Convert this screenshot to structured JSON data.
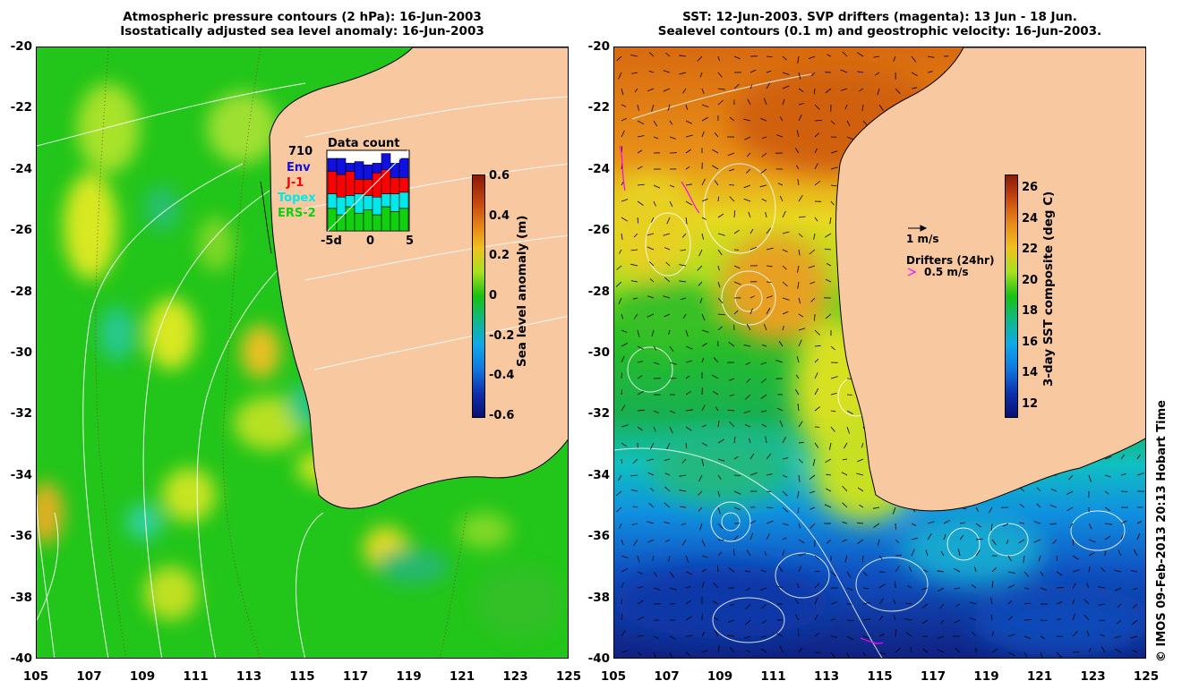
{
  "left_panel": {
    "title_line1": "Atmospheric pressure contours (2 hPa): 16-Jun-2003",
    "title_line2": "Isostatically adjusted sea level anomaly: 16-Jun-2003",
    "colorbar": {
      "label": "Sea level anomaly (m)",
      "ticks": [
        "0.6",
        "0.4",
        "0.2",
        "0",
        "-0.2",
        "-0.4",
        "-0.6"
      ]
    },
    "data_count": {
      "title": "Data count",
      "max_label": "710",
      "legend": [
        {
          "name": "Env",
          "color": "#1010e0"
        },
        {
          "name": "J-1",
          "color": "#ff0000"
        },
        {
          "name": "Topex",
          "color": "#00e8e8"
        },
        {
          "name": "ERS-2",
          "color": "#10d010"
        }
      ],
      "x_ticks": [
        "-5d",
        "0",
        "5"
      ],
      "bars": [
        {
          "ers": 0.28,
          "topex": 0.18,
          "j1": 0.28,
          "env": 0.16
        },
        {
          "ers": 0.2,
          "topex": 0.22,
          "j1": 0.28,
          "env": 0.2
        },
        {
          "ers": 0.3,
          "topex": 0.14,
          "j1": 0.3,
          "env": 0.1
        },
        {
          "ers": 0.22,
          "topex": 0.24,
          "j1": 0.18,
          "env": 0.22
        },
        {
          "ers": 0.26,
          "topex": 0.18,
          "j1": 0.2,
          "env": 0.18
        },
        {
          "ers": 0.2,
          "topex": 0.22,
          "j1": 0.3,
          "env": 0.12
        },
        {
          "ers": 0.3,
          "topex": 0.16,
          "j1": 0.3,
          "env": 0.2
        },
        {
          "ers": 0.24,
          "topex": 0.22,
          "j1": 0.2,
          "env": 0.18
        },
        {
          "ers": 0.28,
          "topex": 0.2,
          "j1": 0.18,
          "env": 0.24
        }
      ]
    }
  },
  "right_panel": {
    "title_line1": "SST: 12-Jun-2003. SVP drifters (magenta): 13 Jun - 18 Jun.",
    "title_line2": "Sealevel contours (0.1 m) and geostrophic velocity: 16-Jun-2003.",
    "colorbar": {
      "label": "3-day SST composite (deg C)",
      "ticks": [
        "26",
        "24",
        "22",
        "20",
        "18",
        "16",
        "14",
        "12"
      ]
    },
    "velocity_legend": "1 m/s",
    "drifter_legend_title": "Drifters (24hr)",
    "drifter_legend_value": "0.5 m/s",
    "drifter_color": "#ff00ff"
  },
  "axes": {
    "y_ticks": [
      "-20",
      "-22",
      "-24",
      "-26",
      "-28",
      "-30",
      "-32",
      "-34",
      "-36",
      "-38",
      "-40"
    ],
    "x_ticks": [
      "105",
      "107",
      "109",
      "111",
      "113",
      "115",
      "117",
      "119",
      "121",
      "123",
      "125"
    ]
  },
  "colors": {
    "land": "#f8c8a0",
    "sla_base": "#22c51a",
    "sst_warm": "#d86a14"
  },
  "credit": "© IMOS 09-Feb-2013 20:13 Hobart Time"
}
